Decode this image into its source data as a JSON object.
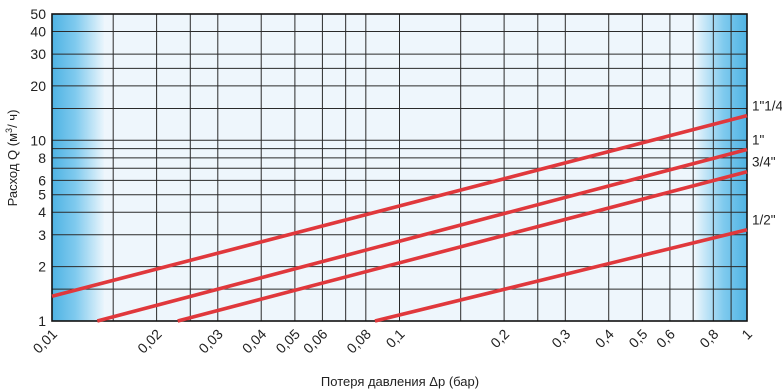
{
  "chart_data": {
    "type": "line",
    "x_scale": "log",
    "y_scale": "log",
    "xlim": [
      0.01,
      1
    ],
    "ylim": [
      1,
      50
    ],
    "xlabel": "Потеря давления Δp (бар)",
    "ylabel_parts": [
      "Расход Q (м",
      "3",
      "/ ч)"
    ],
    "grid": true,
    "x_ticks": [
      0.01,
      0.02,
      0.03,
      0.04,
      0.05,
      0.06,
      0.08,
      0.1,
      0.2,
      0.3,
      0.4,
      0.5,
      0.6,
      0.8,
      1
    ],
    "x_tick_labels": [
      "0,01",
      "0,02",
      "0,03",
      "0,04",
      "0,05",
      "0,06",
      "0,08",
      "0,1",
      "0,2",
      "0,3",
      "0,4",
      "0,5",
      "0,6",
      "0,8",
      "1"
    ],
    "x_minor_grid": [
      0.015,
      0.025,
      0.07,
      0.15,
      0.25,
      0.7,
      0.9
    ],
    "y_ticks": [
      1,
      2,
      3,
      4,
      5,
      6,
      8,
      10,
      20,
      30,
      40,
      50
    ],
    "y_tick_labels": [
      "1",
      "2",
      "3",
      "4",
      "5",
      "6",
      "8",
      "10",
      "20",
      "30",
      "40",
      "50"
    ],
    "y_minor_grid": [
      1.5,
      7,
      9,
      15,
      25
    ],
    "series": [
      {
        "name": "1\"1/4",
        "x": [
          0.01,
          1
        ],
        "y": [
          1.37,
          13.7
        ],
        "color": "#e0383c"
      },
      {
        "name": "1\"",
        "x": [
          0.0135,
          1
        ],
        "y": [
          1.0,
          8.9
        ],
        "color": "#e0383c"
      },
      {
        "name": "3/4\"",
        "x": [
          0.023,
          1
        ],
        "y": [
          1.0,
          6.7
        ],
        "color": "#e0383c"
      },
      {
        "name": "1/2\"",
        "x": [
          0.085,
          1
        ],
        "y": [
          1.0,
          3.2
        ],
        "color": "#e0383c"
      }
    ]
  },
  "colors": {
    "edge_blue": "#4fb3e3",
    "plot_bg": "#eef6fc",
    "grid": "#2a2a2a",
    "line": "#e0383c"
  }
}
